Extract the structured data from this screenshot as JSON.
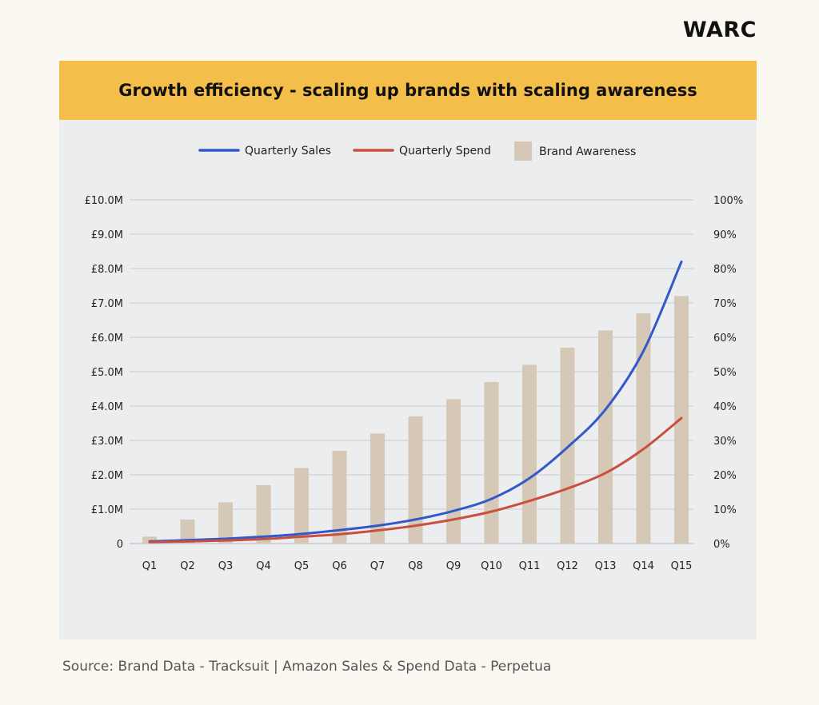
{
  "brand": {
    "logo": "WARC"
  },
  "colors": {
    "background": "#fbf8f1",
    "panel": "#ecedef",
    "title_bar": "#f4be4a",
    "sales": "#3259c9",
    "spend": "#c9503f",
    "awareness": "#d6c8b6",
    "grid": "#c9cace"
  },
  "chart_data": {
    "type": "bar",
    "title": "Growth efficiency - scaling up brands with scaling awareness",
    "categories": [
      "Q1",
      "Q2",
      "Q3",
      "Q4",
      "Q5",
      "Q6",
      "Q7",
      "Q8",
      "Q9",
      "Q10",
      "Q11",
      "Q12",
      "Q13",
      "Q14",
      "Q15"
    ],
    "legend": {
      "placement": "top-center",
      "items": [
        {
          "label": "Quarterly Sales",
          "kind": "line",
          "color": "#3259c9"
        },
        {
          "label": "Quarterly Spend",
          "kind": "line",
          "color": "#c9503f"
        },
        {
          "label": "Brand Awareness",
          "kind": "bar",
          "color": "#d6c8b6"
        }
      ]
    },
    "series": [
      {
        "name": "Brand Awareness",
        "type": "bar",
        "axis": "right",
        "color": "#d6c8b6",
        "values": [
          2,
          7,
          12,
          17,
          22,
          27,
          32,
          37,
          42,
          47,
          52,
          57,
          62,
          67,
          72
        ]
      },
      {
        "name": "Quarterly Sales",
        "type": "line",
        "axis": "left",
        "color": "#3259c9",
        "values": [
          0.06,
          0.1,
          0.14,
          0.2,
          0.28,
          0.39,
          0.52,
          0.7,
          0.95,
          1.3,
          1.9,
          2.8,
          3.9,
          5.6,
          8.2
        ]
      },
      {
        "name": "Quarterly Spend",
        "type": "line",
        "axis": "left",
        "color": "#c9503f",
        "values": [
          0.04,
          0.06,
          0.09,
          0.13,
          0.2,
          0.27,
          0.38,
          0.52,
          0.7,
          0.93,
          1.24,
          1.6,
          2.05,
          2.75,
          3.65
        ]
      }
    ],
    "y_left": {
      "range": [
        0,
        10
      ],
      "ticks": [
        0,
        1,
        2,
        3,
        4,
        5,
        6,
        7,
        8,
        9,
        10
      ],
      "tick_labels": [
        "0",
        "£1.0M",
        "£2.0M",
        "£3.0M",
        "£4.0M",
        "£5.0M",
        "£6.0M",
        "£7.0M",
        "£8.0M",
        "£9.0M",
        "£10.0M"
      ]
    },
    "y_right": {
      "range": [
        0,
        100
      ],
      "ticks": [
        0,
        10,
        20,
        30,
        40,
        50,
        60,
        70,
        80,
        90,
        100
      ],
      "tick_labels": [
        "0%",
        "10%",
        "20%",
        "30%",
        "40%",
        "50%",
        "60%",
        "70%",
        "80%",
        "90%",
        "100%"
      ]
    },
    "grid": true
  },
  "footer": {
    "source": "Source: Brand Data - Tracksuit | Amazon Sales & Spend Data - Perpetua"
  }
}
